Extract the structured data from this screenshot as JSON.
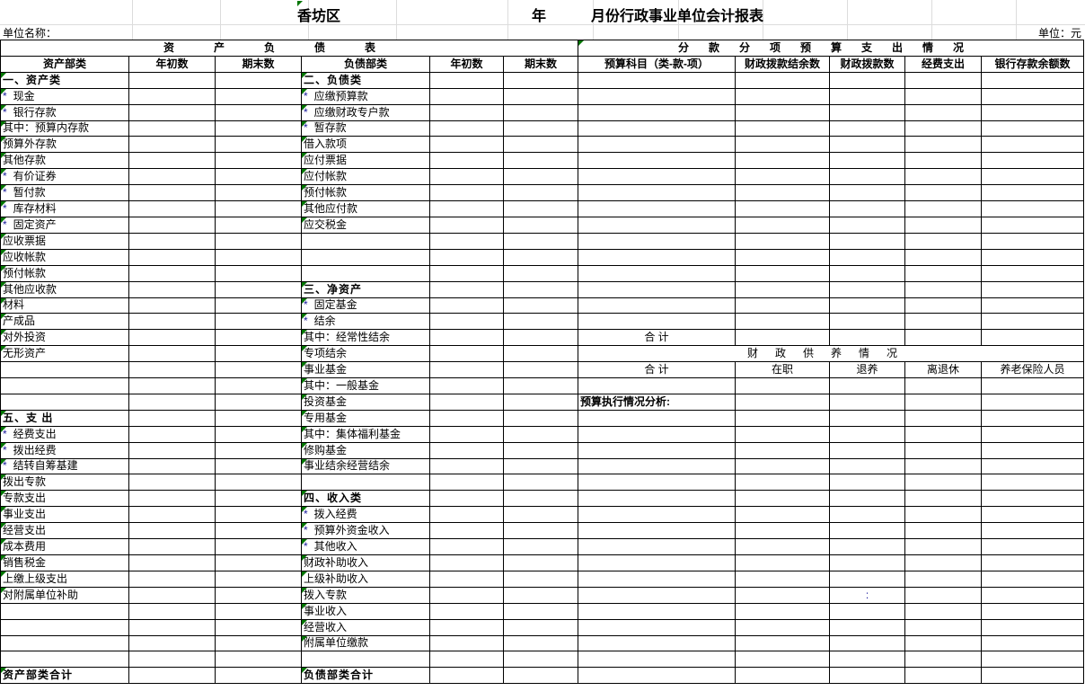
{
  "title": {
    "part1": "香坊区",
    "part2": "年",
    "part3": "月份行政事业单位会计报表"
  },
  "unit_name_label": "单位名称：",
  "unit_label": "单位：元",
  "left_section_title": "资产负债表",
  "right_section_title": "分款分项预算支出情况",
  "star_glyph": "*",
  "columns": [
    "资产部类",
    "年初数",
    "期末数",
    "负债部类",
    "年初数",
    "期末数",
    "预算科目（类-款-项）",
    "财政拨款结余数",
    "财政拨款数",
    "经费支出",
    "银行存款余额数"
  ],
  "asset_rows": [
    {
      "label": "一、资产类",
      "type": "section"
    },
    {
      "label": "现金",
      "type": "star"
    },
    {
      "label": "银行存款",
      "type": "star"
    },
    {
      "label": "其中：预算内存款",
      "type": "sub"
    },
    {
      "label": "预算外存款",
      "type": "deep"
    },
    {
      "label": "其他存款",
      "type": "deep"
    },
    {
      "label": "有价证券",
      "type": "star"
    },
    {
      "label": "暂付款",
      "type": "star"
    },
    {
      "label": "库存材料",
      "type": "star"
    },
    {
      "label": "固定资产",
      "type": "star"
    },
    {
      "label": "应收票据",
      "type": "item"
    },
    {
      "label": "应收帐款",
      "type": "item"
    },
    {
      "label": "预付帐款",
      "type": "item"
    },
    {
      "label": "其他应收款",
      "type": "item"
    },
    {
      "label": "材料",
      "type": "item"
    },
    {
      "label": "产成品",
      "type": "item"
    },
    {
      "label": "对外投资",
      "type": "item"
    },
    {
      "label": "无形资产",
      "type": "item"
    },
    {
      "label": "",
      "type": "empty"
    },
    {
      "label": "",
      "type": "empty"
    },
    {
      "label": "",
      "type": "empty"
    },
    {
      "label": "五、支 出",
      "type": "section"
    },
    {
      "label": "经费支出",
      "type": "star"
    },
    {
      "label": "拨出经费",
      "type": "star"
    },
    {
      "label": "结转自筹基建",
      "type": "star"
    },
    {
      "label": "拨出专款",
      "type": "item"
    },
    {
      "label": "专款支出",
      "type": "item"
    },
    {
      "label": "事业支出",
      "type": "item"
    },
    {
      "label": "经营支出",
      "type": "item"
    },
    {
      "label": "成本费用",
      "type": "item"
    },
    {
      "label": "销售税金",
      "type": "item"
    },
    {
      "label": "上缴上级支出",
      "type": "item"
    },
    {
      "label": "对附属单位补助",
      "type": "item"
    },
    {
      "label": "",
      "type": "empty"
    },
    {
      "label": "",
      "type": "empty"
    },
    {
      "label": "",
      "type": "empty"
    },
    {
      "label": "",
      "type": "empty"
    },
    {
      "label": "资产部类合计",
      "type": "total"
    }
  ],
  "liability_rows": [
    {
      "label": "二、负债类",
      "type": "section"
    },
    {
      "label": "应缴预算款",
      "type": "star"
    },
    {
      "label": "应缴财政专户款",
      "type": "star"
    },
    {
      "label": "暂存款",
      "type": "star"
    },
    {
      "label": "借入款项",
      "type": "item"
    },
    {
      "label": "应付票据",
      "type": "item"
    },
    {
      "label": "应付帐款",
      "type": "item"
    },
    {
      "label": "预付帐款",
      "type": "item"
    },
    {
      "label": "其他应付款",
      "type": "item"
    },
    {
      "label": "应交税金",
      "type": "item"
    },
    {
      "label": "",
      "type": "empty"
    },
    {
      "label": "",
      "type": "empty"
    },
    {
      "label": "",
      "type": "empty"
    },
    {
      "label": "三、净资产",
      "type": "section"
    },
    {
      "label": "固定基金",
      "type": "star"
    },
    {
      "label": "结余",
      "type": "star"
    },
    {
      "label": "其中：经常性结余",
      "type": "sub"
    },
    {
      "label": "专项结余",
      "type": "item"
    },
    {
      "label": "事业基金",
      "type": "item"
    },
    {
      "label": "其中：一般基金",
      "type": "sub"
    },
    {
      "label": "投资基金",
      "type": "item"
    },
    {
      "label": "专用基金",
      "type": "item"
    },
    {
      "label": "其中：集体福利基金",
      "type": "small"
    },
    {
      "label": "修购基金",
      "type": "item"
    },
    {
      "label": "事业结余经营结余",
      "type": "item"
    },
    {
      "label": "",
      "type": "empty"
    },
    {
      "label": "四、收入类",
      "type": "section"
    },
    {
      "label": "拨入经费",
      "type": "star"
    },
    {
      "label": "预算外资金收入",
      "type": "star"
    },
    {
      "label": "其他收入",
      "type": "star"
    },
    {
      "label": "财政补助收入",
      "type": "item"
    },
    {
      "label": "上级补助收入",
      "type": "item"
    },
    {
      "label": "拨入专款",
      "type": "item"
    },
    {
      "label": "事业收入",
      "type": "item"
    },
    {
      "label": "经营收入",
      "type": "item"
    },
    {
      "label": "附属单位缴款",
      "type": "item"
    },
    {
      "label": "",
      "type": "empty"
    },
    {
      "label": "负债部类合计",
      "type": "total"
    }
  ],
  "right": {
    "total_label": "合  计",
    "support_title": "财政供养情况",
    "support_headers": [
      "合  计",
      "在职",
      "退养",
      "离退休",
      "养老保险人员"
    ],
    "analysis_label": "预算执行情况分析:",
    "colon": ":"
  },
  "colors": {
    "border": "#000000",
    "light_grid": "#d9d9d9",
    "star": "#1a1a9c",
    "error_triangle": "#007500"
  }
}
